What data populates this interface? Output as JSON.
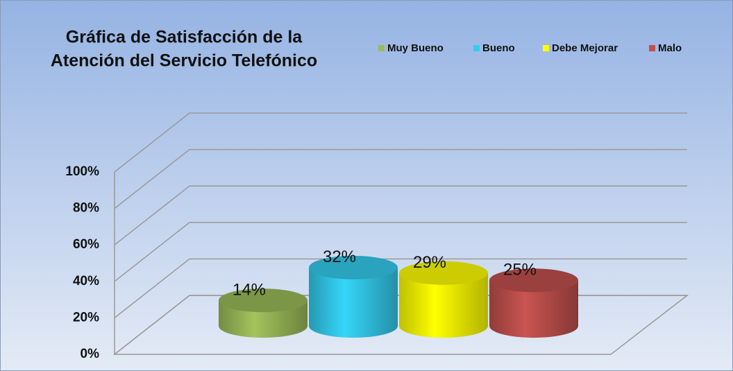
{
  "chart_data": {
    "type": "cylinder",
    "title": [
      "Gráfica de Satisfacción de la",
      "Atención del Servicio Telefónico"
    ],
    "categories": [
      "Muy Bueno",
      "Bueno",
      "Debe Mejorar",
      "Malo"
    ],
    "values": [
      14,
      32,
      29,
      25
    ],
    "value_labels": [
      "14%",
      "32%",
      "29%",
      "25%"
    ],
    "colors": [
      "#9bbb59",
      "#33ccee",
      "#ffff00",
      "#c0504d"
    ],
    "ylim": [
      0,
      100
    ],
    "yticks": [
      {
        "value": 0,
        "label": "0%"
      },
      {
        "value": 20,
        "label": "20%"
      },
      {
        "value": 40,
        "label": "40%"
      },
      {
        "value": 60,
        "label": "60%"
      },
      {
        "value": 80,
        "label": "80%"
      },
      {
        "value": 100,
        "label": "100%"
      }
    ],
    "grid": true,
    "legend": "top"
  }
}
